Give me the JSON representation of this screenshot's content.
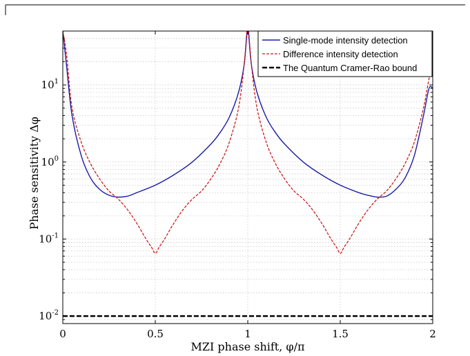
{
  "chart_data": {
    "type": "line",
    "title": "",
    "xlabel": "MZI phase shift, φ/π",
    "ylabel": "Phase sensitivity  Δφ",
    "xlim": [
      0,
      2
    ],
    "ylim": [
      0.008,
      50
    ],
    "y_scale": "log",
    "grid": true,
    "legend_position": "top-right",
    "x_ticks": [
      0,
      0.5,
      1,
      1.5,
      2
    ],
    "x_tick_labels": [
      "0",
      "0.5",
      "1",
      "1.5",
      "2"
    ],
    "y_ticks": [
      0.01,
      0.1,
      1,
      10
    ],
    "y_tick_labels": [
      {
        "base": "10",
        "exp": "-2"
      },
      {
        "base": "10",
        "exp": "-1"
      },
      {
        "base": "10",
        "exp": "0"
      },
      {
        "base": "10",
        "exp": "1"
      }
    ],
    "series": [
      {
        "name": "Single-mode intensity detection",
        "color": "#1a1aa6",
        "style": "solid",
        "x": [
          0.0,
          0.02,
          0.05,
          0.1,
          0.15,
          0.2,
          0.25,
          0.3,
          0.35,
          0.4,
          0.5,
          0.6,
          0.7,
          0.8,
          0.85,
          0.9,
          0.95,
          0.98,
          0.995,
          1.0,
          1.005,
          1.02,
          1.05,
          1.1,
          1.15,
          1.2,
          1.3,
          1.4,
          1.5,
          1.6,
          1.65,
          1.7,
          1.75,
          1.8,
          1.85,
          1.9,
          1.95,
          1.98,
          2.0
        ],
        "y": [
          50,
          18,
          4.0,
          1.2,
          0.62,
          0.44,
          0.37,
          0.35,
          0.36,
          0.4,
          0.5,
          0.68,
          1.0,
          1.7,
          2.4,
          3.8,
          8.0,
          18,
          45,
          50,
          45,
          18,
          8.0,
          3.8,
          2.4,
          1.7,
          1.0,
          0.68,
          0.5,
          0.4,
          0.37,
          0.35,
          0.36,
          0.44,
          0.62,
          1.2,
          4.0,
          9.0,
          9.0
        ]
      },
      {
        "name": "Difference intensity detection",
        "color": "#cc1a1a",
        "style": "dashed",
        "x": [
          0.0,
          0.02,
          0.05,
          0.1,
          0.15,
          0.2,
          0.25,
          0.3,
          0.35,
          0.4,
          0.45,
          0.48,
          0.5,
          0.52,
          0.55,
          0.6,
          0.65,
          0.7,
          0.75,
          0.8,
          0.85,
          0.9,
          0.95,
          0.98,
          0.995,
          1.0,
          1.005,
          1.02,
          1.05,
          1.1,
          1.15,
          1.2,
          1.25,
          1.3,
          1.35,
          1.4,
          1.45,
          1.48,
          1.5,
          1.52,
          1.55,
          1.6,
          1.65,
          1.7,
          1.75,
          1.8,
          1.85,
          1.9,
          1.95,
          1.98,
          2.0
        ],
        "y": [
          50,
          25,
          5.0,
          1.8,
          0.95,
          0.6,
          0.42,
          0.33,
          0.24,
          0.16,
          0.1,
          0.078,
          0.065,
          0.078,
          0.1,
          0.16,
          0.24,
          0.33,
          0.42,
          0.6,
          0.95,
          1.8,
          5.0,
          18,
          50,
          50,
          50,
          18,
          5.0,
          1.8,
          0.95,
          0.6,
          0.42,
          0.33,
          0.24,
          0.16,
          0.1,
          0.078,
          0.065,
          0.078,
          0.1,
          0.16,
          0.24,
          0.33,
          0.42,
          0.6,
          0.95,
          1.8,
          5.0,
          12,
          17
        ]
      },
      {
        "name": "The Quantum Cramer-Rao bound",
        "color": "#000000",
        "style": "thick-dashed",
        "x": [
          0,
          2
        ],
        "y": [
          0.01,
          0.01
        ]
      }
    ]
  }
}
